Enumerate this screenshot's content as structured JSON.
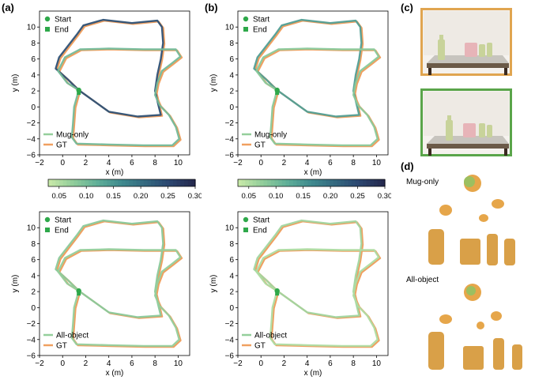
{
  "panel_letters": {
    "a": "(a)",
    "b": "(b)",
    "c": "(c)",
    "d": "(d)"
  },
  "colors": {
    "gt": "#f0a060",
    "start_end": "#2ea84a",
    "frame_orange": "#e0a550",
    "frame_green": "#5aa54a",
    "colormap": [
      "#c6e8a8",
      "#8fcc9a",
      "#5fae98",
      "#3f8a8e",
      "#34687f",
      "#2b4670",
      "#252a4f"
    ]
  },
  "colorbars": [
    {
      "ticks": [
        "0.05",
        "0.10",
        "0.15",
        "0.20",
        "0.25",
        "0.30"
      ],
      "range": [
        0.03,
        0.3
      ]
    },
    {
      "ticks": [
        "0.05",
        "0.10",
        "0.15",
        "0.20",
        "0.25",
        "0.30"
      ],
      "range": [
        0.03,
        0.3
      ]
    }
  ],
  "d_labels": {
    "mug_only": "Mug-only",
    "all_object": "All-object"
  },
  "chart_data": [
    {
      "type": "line",
      "id": "a-top",
      "xlabel": "x (m)",
      "ylabel": "y (m)",
      "xlim": [
        -2,
        11
      ],
      "ylim": [
        -6,
        12
      ],
      "xticks": [
        "−2",
        "0",
        "2",
        "4",
        "6",
        "8",
        "10"
      ],
      "yticks": [
        "−6",
        "−4",
        "−2",
        "0",
        "2",
        "4",
        "6",
        "8",
        "10"
      ],
      "legend_top": [
        {
          "label": "Start",
          "marker": "circle"
        },
        {
          "label": "End",
          "marker": "square"
        }
      ],
      "legend_bottom": [
        {
          "label": "Mug-only",
          "kind": "estimate"
        },
        {
          "label": "GT",
          "kind": "gt"
        }
      ],
      "start": [
        1.4,
        2.1
      ],
      "series": [
        {
          "points": [
            [
              1.4,
              2.1
            ],
            [
              0.4,
              3.5
            ],
            [
              -0.6,
              4.8
            ],
            [
              -0.3,
              6.2
            ],
            [
              0.5,
              7.7
            ],
            [
              1.2,
              9.0
            ],
            [
              1.8,
              10.2
            ],
            [
              3.5,
              10.9
            ],
            [
              6.0,
              10.5
            ],
            [
              8.2,
              10.8
            ],
            [
              8.6,
              10.0
            ],
            [
              8.7,
              8.0
            ],
            [
              8.5,
              6.0
            ],
            [
              8.2,
              4.0
            ],
            [
              8.0,
              2.0
            ],
            [
              8.3,
              0.2
            ],
            [
              8.5,
              -1.0
            ],
            [
              6.5,
              -1.2
            ],
            [
              4.0,
              -0.6
            ],
            [
              1.4,
              2.1
            ]
          ],
          "error": 0.24
        },
        {
          "points": [
            [
              1.4,
              2.1
            ],
            [
              1.0,
              0
            ],
            [
              0.9,
              -2
            ],
            [
              0.8,
              -3.8
            ],
            [
              1.2,
              -4.6
            ],
            [
              4,
              -4.7
            ],
            [
              7,
              -4.8
            ],
            [
              9.5,
              -4.8
            ],
            [
              10.1,
              -4.0
            ],
            [
              9.8,
              -2.5
            ],
            [
              9.2,
              -1
            ],
            [
              8.4,
              0.2
            ],
            [
              8.0,
              1.5
            ],
            [
              8.2,
              3.0
            ],
            [
              8.6,
              4.5
            ],
            [
              9.5,
              5.5
            ],
            [
              10.2,
              6.3
            ],
            [
              9.8,
              7.2
            ],
            [
              7.0,
              7.2
            ],
            [
              4.0,
              7.3
            ],
            [
              1.5,
              7.2
            ],
            [
              0.2,
              6.2
            ],
            [
              -0.4,
              4.5
            ],
            [
              0.4,
              3.0
            ],
            [
              1.4,
              2.1
            ]
          ],
          "error": 0.1
        }
      ]
    },
    {
      "type": "line",
      "id": "b-top",
      "xlabel": "x (m)",
      "ylabel": "y (m)",
      "xlim": [
        -2,
        11
      ],
      "ylim": [
        -6,
        12
      ],
      "xticks": [
        "−2",
        "0",
        "2",
        "4",
        "6",
        "8",
        "10"
      ],
      "yticks": [
        "−6",
        "−4",
        "−2",
        "0",
        "2",
        "4",
        "6",
        "8",
        "10"
      ],
      "legend_top": [
        {
          "label": "Start",
          "marker": "circle"
        },
        {
          "label": "End",
          "marker": "square"
        }
      ],
      "legend_bottom": [
        {
          "label": "Mug-only",
          "kind": "estimate"
        },
        {
          "label": "GT",
          "kind": "gt"
        }
      ],
      "start": [
        1.4,
        2.1
      ],
      "series": [
        {
          "points": [
            [
              1.4,
              2.1
            ],
            [
              0.4,
              3.5
            ],
            [
              -0.6,
              4.8
            ],
            [
              -0.3,
              6.2
            ],
            [
              0.5,
              7.7
            ],
            [
              1.2,
              9.0
            ],
            [
              1.8,
              10.2
            ],
            [
              3.5,
              10.9
            ],
            [
              6.0,
              10.5
            ],
            [
              8.2,
              10.8
            ],
            [
              8.6,
              10.0
            ],
            [
              8.7,
              8.0
            ],
            [
              8.5,
              6.0
            ],
            [
              8.2,
              4.0
            ],
            [
              8.0,
              2.0
            ],
            [
              8.3,
              0.2
            ],
            [
              8.5,
              -1.0
            ],
            [
              6.5,
              -1.2
            ],
            [
              4.0,
              -0.6
            ],
            [
              1.4,
              2.1
            ]
          ],
          "error": 0.14
        },
        {
          "points": [
            [
              1.4,
              2.1
            ],
            [
              1.0,
              0
            ],
            [
              0.9,
              -2
            ],
            [
              0.8,
              -3.8
            ],
            [
              1.2,
              -4.6
            ],
            [
              4,
              -4.7
            ],
            [
              7,
              -4.8
            ],
            [
              9.5,
              -4.8
            ],
            [
              10.1,
              -4.0
            ],
            [
              9.8,
              -2.5
            ],
            [
              9.2,
              -1
            ],
            [
              8.4,
              0.2
            ],
            [
              8.0,
              1.5
            ],
            [
              8.2,
              3.0
            ],
            [
              8.6,
              4.5
            ],
            [
              9.5,
              5.5
            ],
            [
              10.2,
              6.3
            ],
            [
              9.8,
              7.2
            ],
            [
              7.0,
              7.2
            ],
            [
              4.0,
              7.3
            ],
            [
              1.5,
              7.2
            ],
            [
              0.2,
              6.2
            ],
            [
              -0.4,
              4.5
            ],
            [
              0.4,
              3.0
            ],
            [
              1.4,
              2.1
            ]
          ],
          "error": 0.08
        }
      ]
    },
    {
      "type": "line",
      "id": "a-bottom",
      "xlabel": "x (m)",
      "ylabel": "y (m)",
      "xlim": [
        -2,
        11
      ],
      "ylim": [
        -6,
        12
      ],
      "xticks": [
        "−2",
        "0",
        "2",
        "4",
        "6",
        "8",
        "10"
      ],
      "yticks": [
        "−6",
        "−4",
        "−2",
        "0",
        "2",
        "4",
        "6",
        "8",
        "10"
      ],
      "legend_top": [
        {
          "label": "Start",
          "marker": "circle"
        },
        {
          "label": "End",
          "marker": "square"
        }
      ],
      "legend_bottom": [
        {
          "label": "All-object",
          "kind": "estimate"
        },
        {
          "label": "GT",
          "kind": "gt"
        }
      ],
      "start": [
        1.4,
        2.1
      ],
      "series": [
        {
          "points": [
            [
              1.4,
              2.1
            ],
            [
              0.4,
              3.5
            ],
            [
              -0.6,
              4.8
            ],
            [
              -0.3,
              6.2
            ],
            [
              0.5,
              7.7
            ],
            [
              1.2,
              9.0
            ],
            [
              1.8,
              10.2
            ],
            [
              3.5,
              10.9
            ],
            [
              6.0,
              10.5
            ],
            [
              8.2,
              10.8
            ],
            [
              8.6,
              10.0
            ],
            [
              8.7,
              8.0
            ],
            [
              8.5,
              6.0
            ],
            [
              8.2,
              4.0
            ],
            [
              8.0,
              2.0
            ],
            [
              8.3,
              0.2
            ],
            [
              8.5,
              -1.0
            ],
            [
              6.5,
              -1.2
            ],
            [
              4.0,
              -0.6
            ],
            [
              1.4,
              2.1
            ]
          ],
          "error": 0.08
        },
        {
          "points": [
            [
              1.4,
              2.1
            ],
            [
              1.0,
              0
            ],
            [
              0.9,
              -2
            ],
            [
              0.8,
              -3.8
            ],
            [
              1.2,
              -4.6
            ],
            [
              4,
              -4.7
            ],
            [
              7,
              -4.8
            ],
            [
              9.5,
              -4.8
            ],
            [
              10.1,
              -4.0
            ],
            [
              9.8,
              -2.5
            ],
            [
              9.2,
              -1
            ],
            [
              8.4,
              0.2
            ],
            [
              8.0,
              1.5
            ],
            [
              8.2,
              3.0
            ],
            [
              8.6,
              4.5
            ],
            [
              9.5,
              5.5
            ],
            [
              10.2,
              6.3
            ],
            [
              9.8,
              7.2
            ],
            [
              7.0,
              7.2
            ],
            [
              4.0,
              7.3
            ],
            [
              1.5,
              7.2
            ],
            [
              0.2,
              6.2
            ],
            [
              -0.4,
              4.5
            ],
            [
              0.4,
              3.0
            ],
            [
              1.4,
              2.1
            ]
          ],
          "error": 0.07
        }
      ]
    },
    {
      "type": "line",
      "id": "b-bottom",
      "xlabel": "x (m)",
      "ylabel": "y (m)",
      "xlim": [
        -2,
        11
      ],
      "ylim": [
        -6,
        12
      ],
      "xticks": [
        "−2",
        "0",
        "2",
        "4",
        "6",
        "8",
        "10"
      ],
      "yticks": [
        "−6",
        "−4",
        "−2",
        "0",
        "2",
        "4",
        "6",
        "8",
        "10"
      ],
      "legend_top": [
        {
          "label": "Start",
          "marker": "circle"
        },
        {
          "label": "End",
          "marker": "square"
        }
      ],
      "legend_bottom": [
        {
          "label": "All-object",
          "kind": "estimate"
        },
        {
          "label": "GT",
          "kind": "gt"
        }
      ],
      "start": [
        1.4,
        2.1
      ],
      "series": [
        {
          "points": [
            [
              1.4,
              2.1
            ],
            [
              0.4,
              3.5
            ],
            [
              -0.6,
              4.8
            ],
            [
              -0.3,
              6.2
            ],
            [
              0.5,
              7.7
            ],
            [
              1.2,
              9.0
            ],
            [
              1.8,
              10.2
            ],
            [
              3.5,
              10.9
            ],
            [
              6.0,
              10.5
            ],
            [
              8.2,
              10.8
            ],
            [
              8.6,
              10.0
            ],
            [
              8.7,
              8.0
            ],
            [
              8.5,
              6.0
            ],
            [
              8.2,
              4.0
            ],
            [
              8.0,
              2.0
            ],
            [
              8.3,
              0.2
            ],
            [
              8.5,
              -1.0
            ],
            [
              6.5,
              -1.2
            ],
            [
              4.0,
              -0.6
            ],
            [
              1.4,
              2.1
            ]
          ],
          "error": 0.06
        },
        {
          "points": [
            [
              1.4,
              2.1
            ],
            [
              1.0,
              0
            ],
            [
              0.9,
              -2
            ],
            [
              0.8,
              -3.8
            ],
            [
              1.2,
              -4.6
            ],
            [
              4,
              -4.7
            ],
            [
              7,
              -4.8
            ],
            [
              9.5,
              -4.8
            ],
            [
              10.1,
              -4.0
            ],
            [
              9.8,
              -2.5
            ],
            [
              9.2,
              -1
            ],
            [
              8.4,
              0.2
            ],
            [
              8.0,
              1.5
            ],
            [
              8.2,
              3.0
            ],
            [
              8.6,
              4.5
            ],
            [
              9.5,
              5.5
            ],
            [
              10.2,
              6.3
            ],
            [
              9.8,
              7.2
            ],
            [
              7.0,
              7.2
            ],
            [
              4.0,
              7.3
            ],
            [
              1.5,
              7.2
            ],
            [
              0.2,
              6.2
            ],
            [
              -0.4,
              4.5
            ],
            [
              0.4,
              3.0
            ],
            [
              1.4,
              2.1
            ]
          ],
          "error": 0.05
        }
      ]
    }
  ]
}
